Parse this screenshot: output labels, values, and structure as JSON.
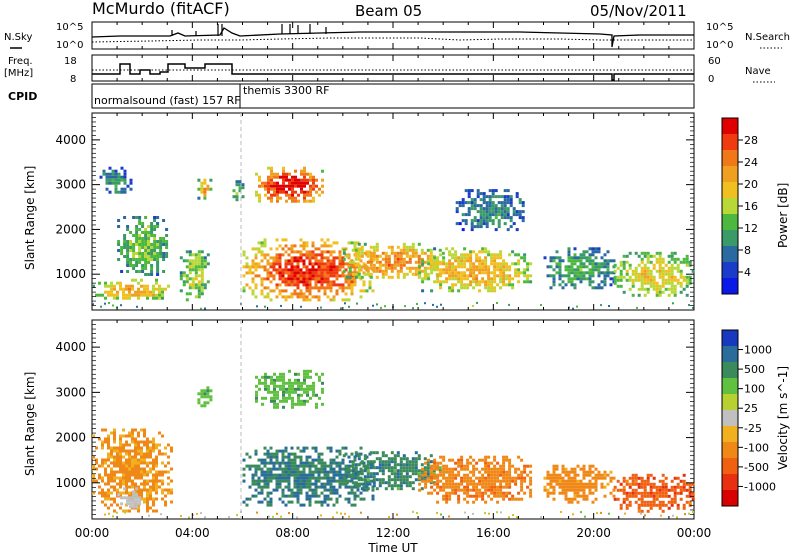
{
  "header": {
    "station": "McMurdo (fitACF)",
    "beam": "Beam 05",
    "date": "05/Nov/2011"
  },
  "noise_panel": {
    "left_label": "N.Sky",
    "right_label": "N.Search",
    "left_ticks": [
      "10^5",
      "10^0"
    ],
    "right_ticks": [
      "10^5",
      "10^0"
    ]
  },
  "freq_panel": {
    "left_label_1": "Freq.",
    "left_label_2": "[MHz]",
    "left_ticks": [
      "18",
      "8"
    ],
    "right_label": "Nave",
    "right_ticks": [
      "60",
      "0"
    ]
  },
  "cpid": {
    "label": "CPID",
    "mode_1": "normalsound (fast) 157 RF",
    "mode_2": "themis 3300 RF"
  },
  "power_colorbar": {
    "title": "Power [dB]",
    "ticks": [
      "28",
      "24",
      "20",
      "16",
      "12",
      "8",
      "4"
    ],
    "colors": [
      "#e00000",
      "#f03a10",
      "#f07818",
      "#f0a020",
      "#f0c020",
      "#b8d838",
      "#4cb840",
      "#3a9a68",
      "#2a6aa0",
      "#1a3cc8",
      "#0a18e8"
    ]
  },
  "velocity_colorbar": {
    "title": "Velocity [m s^-1]",
    "ticks": [
      "1000",
      "500",
      "100",
      "25",
      "-25",
      "-100",
      "-500",
      "-1000"
    ],
    "colors": [
      "#1838c0",
      "#2a6c9a",
      "#3a8a5c",
      "#60c040",
      "#b8d030",
      "#c0c0c0",
      "#f0b020",
      "#f08818",
      "#f06010",
      "#e83010",
      "#d80000"
    ]
  },
  "chart_data": [
    {
      "type": "heatmap",
      "title": "Power",
      "xlabel": "",
      "ylabel": "Slant Range [km]",
      "xlim": [
        "00:00",
        "24:00"
      ],
      "ylim": [
        200,
        4600
      ],
      "yticks": [
        1000,
        2000,
        3000,
        4000
      ],
      "colorbar_unit": "dB",
      "regions": [
        {
          "t": [
            0.0,
            3.2
          ],
          "r": [
            450,
            900
          ],
          "value": 18
        },
        {
          "t": [
            0.3,
            1.5
          ],
          "r": [
            2800,
            3400
          ],
          "value": 8
        },
        {
          "t": [
            1.0,
            3.0
          ],
          "r": [
            1000,
            2300
          ],
          "value": 12
        },
        {
          "t": [
            3.5,
            4.6
          ],
          "r": [
            400,
            1600
          ],
          "value": 14
        },
        {
          "t": [
            4.2,
            4.7
          ],
          "r": [
            2700,
            3200
          ],
          "value": 18
        },
        {
          "t": [
            5.6,
            6.0
          ],
          "r": [
            2600,
            3100
          ],
          "value": 12
        },
        {
          "t": [
            6.0,
            11.2
          ],
          "r": [
            400,
            1800
          ],
          "value": 24
        },
        {
          "t": [
            6.5,
            9.2
          ],
          "r": [
            2600,
            3400
          ],
          "value": 26
        },
        {
          "t": [
            10.0,
            14.0
          ],
          "r": [
            900,
            1700
          ],
          "value": 20
        },
        {
          "t": [
            13.0,
            17.5
          ],
          "r": [
            600,
            1600
          ],
          "value": 18
        },
        {
          "t": [
            14.5,
            17.2
          ],
          "r": [
            2000,
            2900
          ],
          "value": 8
        },
        {
          "t": [
            18.0,
            20.8
          ],
          "r": [
            700,
            1600
          ],
          "value": 10
        },
        {
          "t": [
            20.8,
            24.0
          ],
          "r": [
            500,
            1500
          ],
          "value": 16
        }
      ]
    },
    {
      "type": "heatmap",
      "title": "Velocity",
      "xlabel": "Time UT",
      "ylabel": "Slant Range [km]",
      "xlim": [
        "00:00",
        "24:00"
      ],
      "ylim": [
        200,
        4600
      ],
      "yticks": [
        1000,
        2000,
        3000,
        4000
      ],
      "xticks": [
        "00:00",
        "04:00",
        "08:00",
        "12:00",
        "16:00",
        "20:00",
        "00:00"
      ],
      "colorbar_unit": "m s^-1",
      "regions": [
        {
          "t": [
            0.0,
            3.2
          ],
          "r": [
            400,
            2200
          ],
          "value": -120
        },
        {
          "t": [
            1.0,
            2.0
          ],
          "r": [
            500,
            900
          ],
          "value": 0
        },
        {
          "t": [
            4.2,
            4.7
          ],
          "r": [
            2700,
            3200
          ],
          "value": 200
        },
        {
          "t": [
            6.0,
            11.2
          ],
          "r": [
            500,
            1800
          ],
          "value": 500
        },
        {
          "t": [
            6.5,
            9.2
          ],
          "r": [
            2700,
            3500
          ],
          "value": 200
        },
        {
          "t": [
            10.0,
            14.0
          ],
          "r": [
            900,
            1700
          ],
          "value": 400
        },
        {
          "t": [
            13.0,
            17.5
          ],
          "r": [
            600,
            1600
          ],
          "value": -200
        },
        {
          "t": [
            18.0,
            20.8
          ],
          "r": [
            600,
            1400
          ],
          "value": -150
        },
        {
          "t": [
            20.8,
            24.0
          ],
          "r": [
            400,
            1200
          ],
          "value": -400
        }
      ]
    }
  ]
}
